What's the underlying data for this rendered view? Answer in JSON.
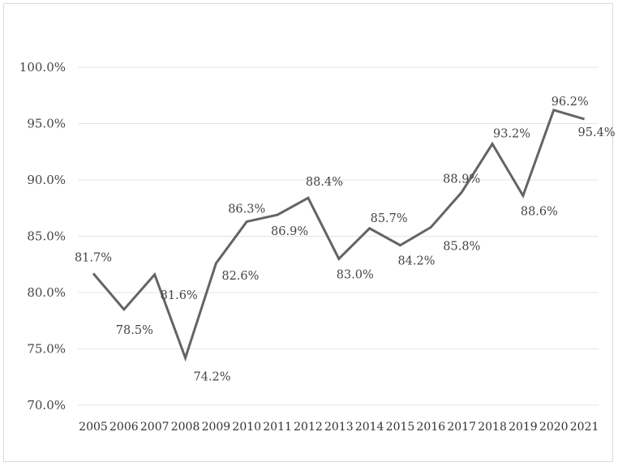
{
  "chart_data": {
    "type": "line",
    "title": "",
    "xlabel": "",
    "ylabel": "",
    "ylim": [
      70,
      100
    ],
    "yticks": [
      "100.0%",
      "95.0%",
      "90.0%",
      "85.0%",
      "80.0%",
      "75.0%",
      "70.0%"
    ],
    "grid": true,
    "categories": [
      "2005",
      "2006",
      "2007",
      "2008",
      "2009",
      "2010",
      "2011",
      "2012",
      "2013",
      "2014",
      "2015",
      "2016",
      "2017",
      "2018",
      "2019",
      "2020",
      "2021"
    ],
    "series": [
      {
        "name": "",
        "color": "#646464",
        "values": [
          81.7,
          78.5,
          81.6,
          74.2,
          82.6,
          86.3,
          86.9,
          88.4,
          83.0,
          85.7,
          84.2,
          85.8,
          88.9,
          93.2,
          88.6,
          96.2,
          95.4
        ],
        "labels": [
          "81.7%",
          "78.5%",
          "81.6%",
          "74.2%",
          "82.6%",
          "86.3%",
          "86.9%",
          "88.4%",
          "83.0%",
          "85.7%",
          "84.2%",
          "85.8%",
          "88.9%",
          "93.2%",
          "88.6%",
          "96.2%",
          "95.4%"
        ]
      }
    ]
  }
}
